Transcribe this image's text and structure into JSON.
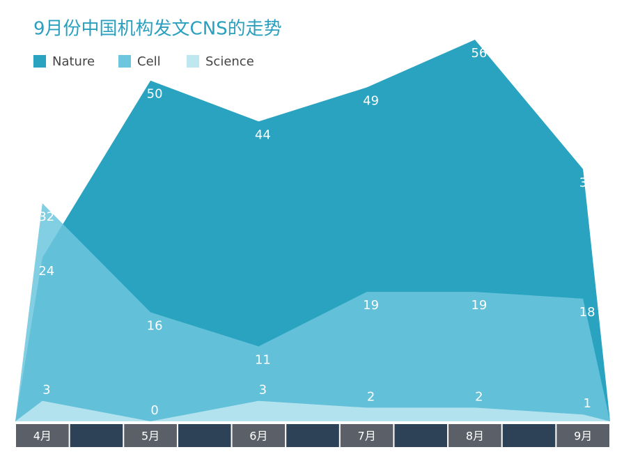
{
  "chart_data": {
    "type": "area",
    "title": "9月份中国机构发文CNS的走势",
    "categories": [
      "4月",
      "5月",
      "6月",
      "7月",
      "8月",
      "9月"
    ],
    "series": [
      {
        "name": "Nature",
        "color": "#29a3c0",
        "values": [
          24,
          50,
          44,
          49,
          56,
          37
        ]
      },
      {
        "name": "Cell",
        "color": "#6cc6dd",
        "values": [
          32,
          16,
          11,
          19,
          19,
          18
        ]
      },
      {
        "name": "Science",
        "color": "#bfe7f0",
        "values": [
          3,
          0,
          3,
          2,
          2,
          1
        ]
      }
    ]
  }
}
